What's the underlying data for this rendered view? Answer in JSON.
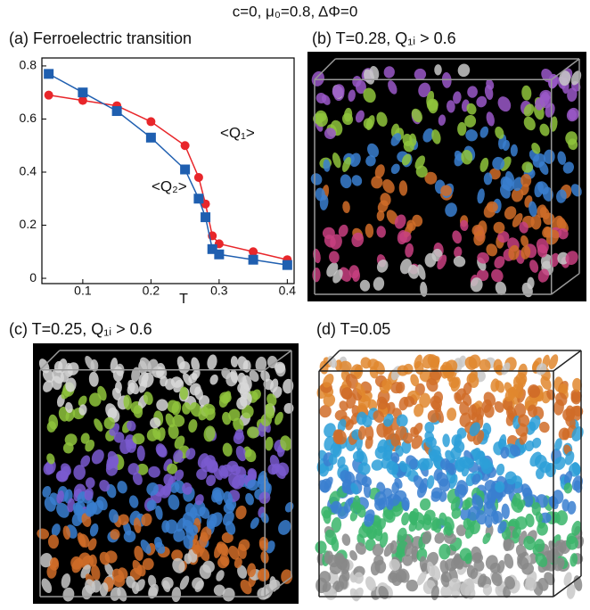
{
  "title": "c=0, μ₀=0.8, ΔΦ=0",
  "chart_data": {
    "type": "line",
    "title": "(a)  Ferroelectric transition",
    "x_label": "T",
    "x": [
      0.05,
      0.1,
      0.15,
      0.2,
      0.25,
      0.27,
      0.28,
      0.29,
      0.3,
      0.35,
      0.4
    ],
    "xlim": [
      0.04,
      0.41
    ],
    "xticks": [
      0.1,
      0.2,
      0.3,
      0.4
    ],
    "ylim": [
      -0.02,
      0.83
    ],
    "yticks": [
      0,
      0.2,
      0.4,
      0.6,
      0.8
    ],
    "series": [
      {
        "name": "<Q₁>",
        "color": "#e8262a",
        "marker": "circle",
        "values": [
          0.69,
          0.67,
          0.65,
          0.59,
          0.5,
          0.38,
          0.28,
          0.16,
          0.13,
          0.1,
          0.07
        ]
      },
      {
        "name": "<Q₂>",
        "color": "#1f5fb0",
        "marker": "square",
        "values": [
          0.77,
          0.7,
          0.63,
          0.53,
          0.41,
          0.3,
          0.23,
          0.11,
          0.09,
          0.07,
          0.05
        ]
      }
    ]
  },
  "panels": [
    {
      "label": "(b)  T=0.28, Q₁ᵢ > 0.6"
    },
    {
      "label": "(c)  T=0.25, Q₁ᵢ > 0.6"
    },
    {
      "label": "(d)  T=0.05"
    }
  ]
}
